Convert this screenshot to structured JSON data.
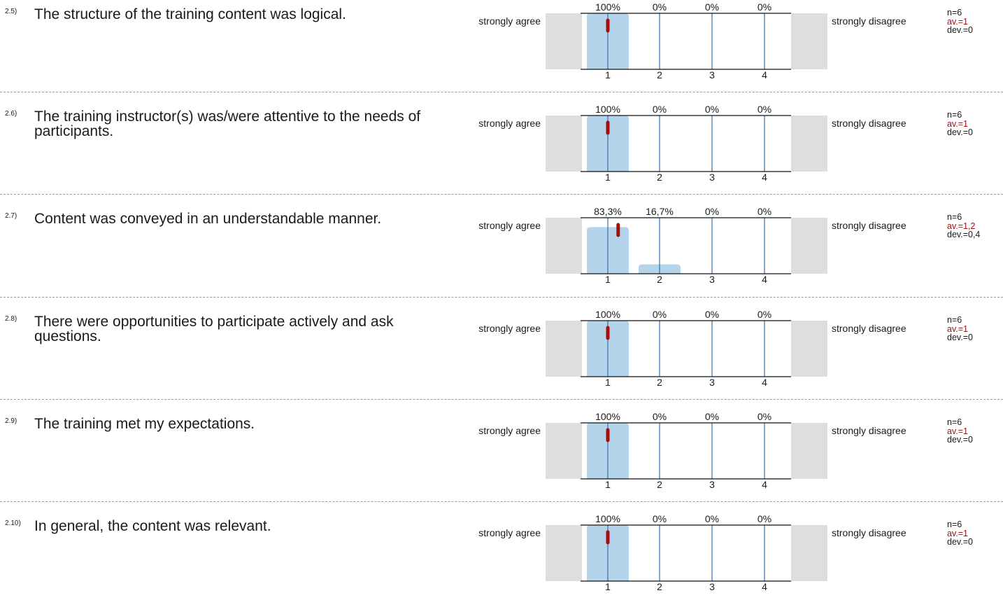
{
  "scale": {
    "left_label": "strongly agree",
    "right_label": "strongly disagree",
    "options": [
      "1",
      "2",
      "3",
      "4"
    ]
  },
  "colors": {
    "bar": "#b4d4ec",
    "gridline": "#2f6db0",
    "mean_marker": "#aa0c0c",
    "abstain_box": "#dedede",
    "average_text": "#a01010"
  },
  "questions": [
    {
      "number": "2.5)",
      "text": "The structure of the training content was logical.",
      "pct_labels": [
        "100%",
        "0%",
        "0%",
        "0%"
      ],
      "n": "n=6",
      "av": "av.=1",
      "dev": "dev.=0"
    },
    {
      "number": "2.6)",
      "text": "The training instructor(s) was/were attentive to the needs of participants.",
      "pct_labels": [
        "100%",
        "0%",
        "0%",
        "0%"
      ],
      "n": "n=6",
      "av": "av.=1",
      "dev": "dev.=0"
    },
    {
      "number": "2.7)",
      "text": "Content was conveyed in an understandable manner.",
      "pct_labels": [
        "83,3%",
        "16,7%",
        "0%",
        "0%"
      ],
      "n": "n=6",
      "av": "av.=1,2",
      "dev": "dev.=0,4"
    },
    {
      "number": "2.8)",
      "text": "There were opportunities to participate actively and ask questions.",
      "pct_labels": [
        "100%",
        "0%",
        "0%",
        "0%"
      ],
      "n": "n=6",
      "av": "av.=1",
      "dev": "dev.=0"
    },
    {
      "number": "2.9)",
      "text": "The training met my expectations.",
      "pct_labels": [
        "100%",
        "0%",
        "0%",
        "0%"
      ],
      "n": "n=6",
      "av": "av.=1",
      "dev": "dev.=0"
    },
    {
      "number": "2.10)",
      "text": "In general, the content was relevant.",
      "pct_labels": [
        "100%",
        "0%",
        "0%",
        "0%"
      ],
      "n": "n=6",
      "av": "av.=1",
      "dev": "dev.=0"
    }
  ],
  "chart_data": [
    {
      "type": "bar",
      "categories": [
        "1",
        "2",
        "3",
        "4"
      ],
      "values": [
        100,
        0,
        0,
        0
      ],
      "ylim": [
        0,
        100
      ],
      "mean": 1
    },
    {
      "type": "bar",
      "categories": [
        "1",
        "2",
        "3",
        "4"
      ],
      "values": [
        100,
        0,
        0,
        0
      ],
      "ylim": [
        0,
        100
      ],
      "mean": 1
    },
    {
      "type": "bar",
      "categories": [
        "1",
        "2",
        "3",
        "4"
      ],
      "values": [
        83.3,
        16.7,
        0,
        0
      ],
      "ylim": [
        0,
        100
      ],
      "mean": 1.2
    },
    {
      "type": "bar",
      "categories": [
        "1",
        "2",
        "3",
        "4"
      ],
      "values": [
        100,
        0,
        0,
        0
      ],
      "ylim": [
        0,
        100
      ],
      "mean": 1
    },
    {
      "type": "bar",
      "categories": [
        "1",
        "2",
        "3",
        "4"
      ],
      "values": [
        100,
        0,
        0,
        0
      ],
      "ylim": [
        0,
        100
      ],
      "mean": 1
    },
    {
      "type": "bar",
      "categories": [
        "1",
        "2",
        "3",
        "4"
      ],
      "values": [
        100,
        0,
        0,
        0
      ],
      "ylim": [
        0,
        100
      ],
      "mean": 1
    }
  ]
}
